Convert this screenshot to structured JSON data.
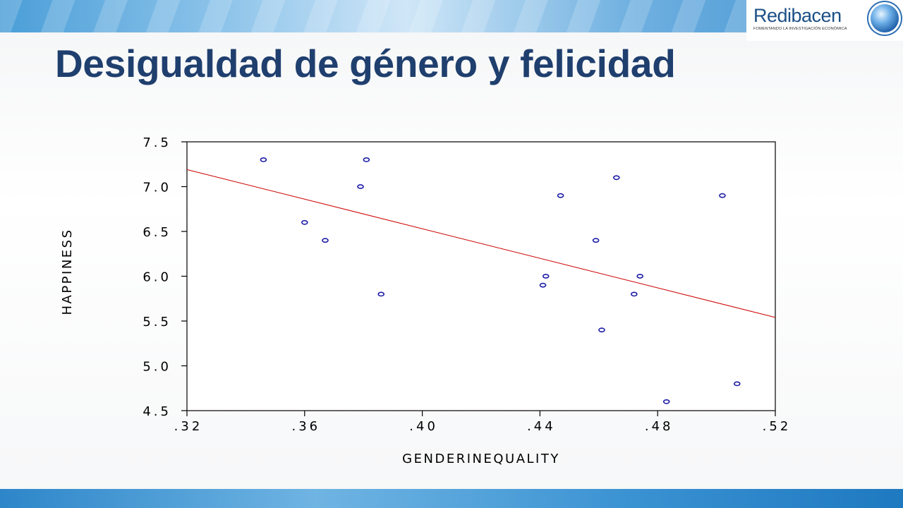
{
  "slide": {
    "title": "Desigualdad de género y felicidad"
  },
  "logo": {
    "name": "Redibacen",
    "tagline": "FOMENTANDO LA INVESTIGACIÓN ECONÓMICA"
  },
  "colors": {
    "title": "#1f3f6e",
    "points": "#1a1aa6",
    "fit_line": "#cc0000"
  },
  "chart_data": {
    "type": "scatter",
    "xlabel": "GENDERINEQUALITY",
    "ylabel": "HAPPINESS",
    "xlim": [
      0.32,
      0.52
    ],
    "ylim": [
      4.5,
      7.5
    ],
    "xticks": [
      0.32,
      0.36,
      0.4,
      0.44,
      0.48,
      0.52
    ],
    "xtick_labels": [
      ".32",
      ".36",
      ".40",
      ".44",
      ".48",
      ".52"
    ],
    "yticks": [
      4.5,
      5.0,
      5.5,
      6.0,
      6.5,
      7.0,
      7.5
    ],
    "ytick_labels": [
      "4.5",
      "5.0",
      "5.5",
      "6.0",
      "6.5",
      "7.0",
      "7.5"
    ],
    "grid": false,
    "points": [
      {
        "x": 0.346,
        "y": 7.3
      },
      {
        "x": 0.381,
        "y": 7.3
      },
      {
        "x": 0.379,
        "y": 7.0
      },
      {
        "x": 0.36,
        "y": 6.6
      },
      {
        "x": 0.367,
        "y": 6.4
      },
      {
        "x": 0.386,
        "y": 5.8
      },
      {
        "x": 0.466,
        "y": 7.1
      },
      {
        "x": 0.447,
        "y": 6.9
      },
      {
        "x": 0.459,
        "y": 6.4
      },
      {
        "x": 0.442,
        "y": 6.0
      },
      {
        "x": 0.441,
        "y": 5.9
      },
      {
        "x": 0.474,
        "y": 6.0
      },
      {
        "x": 0.472,
        "y": 5.8
      },
      {
        "x": 0.461,
        "y": 5.4
      },
      {
        "x": 0.502,
        "y": 6.9
      },
      {
        "x": 0.507,
        "y": 4.8
      },
      {
        "x": 0.483,
        "y": 4.6
      }
    ],
    "fit_line": {
      "x": [
        0.32,
        0.52
      ],
      "y": [
        7.19,
        5.54
      ]
    }
  }
}
